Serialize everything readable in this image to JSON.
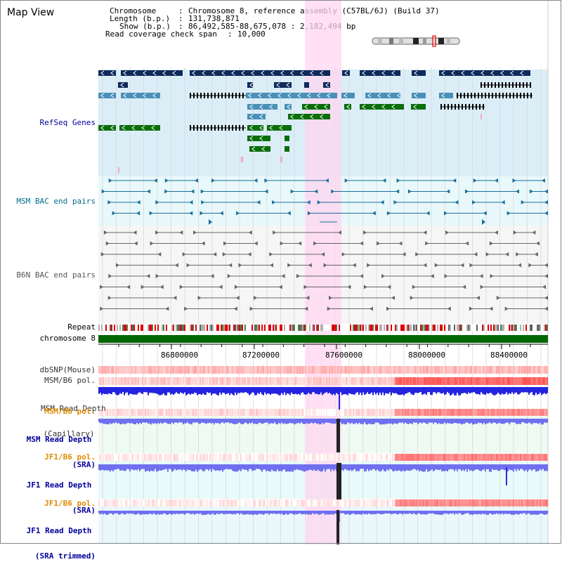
{
  "app": {
    "title": "Map View"
  },
  "header": {
    "chromosome_key": "Chromosome",
    "chromosome_val": "Chromosome 8, reference assembly (C57BL/6J) (Build 37)",
    "length_key": "Length (b.p.)",
    "length_val": "131,738,871",
    "show_key": "Show (b.p.)",
    "show_val": "86,492,585-88,675,078 : 2,182,494 bp",
    "coverage_key": "Read coverage check span",
    "coverage_val": "10,000",
    "sep": ":"
  },
  "tracks": {
    "refseq": {
      "label": "RefSeq Genes",
      "color": "#00009c"
    },
    "msm_bac": {
      "label": "MSM BAC end pairs",
      "color": "#006c8a"
    },
    "b6n_bac": {
      "label": "B6N BAC end pairs",
      "color": "#555555"
    },
    "repeat": {
      "label": "Repeat"
    },
    "chromosome": {
      "label": "chromosome 8"
    },
    "dbsnp": {
      "label": "dbSNP(Mouse)"
    },
    "msm_b6_pol_1": {
      "label": "MSM/B6 pol."
    },
    "msm_read_cap": {
      "line1": "MSM Read Depth",
      "line2": "(Capillary)"
    },
    "msm_b6_pol_2": {
      "label": "MSM/B6 pol.",
      "color": "#e08a00"
    },
    "msm_read_sra": {
      "line1": "MSM Read Depth",
      "line2": "(SRA)",
      "color": "#00009c"
    },
    "jf1_b6_pol_1": {
      "label": "JF1/B6 pol.",
      "color": "#e08a00"
    },
    "jf1_read_sra": {
      "line1": "JF1 Read Depth",
      "line2": "(SRA)",
      "color": "#00009c"
    },
    "jf1_b6_pol_2": {
      "label": "JF1/B6 pol.",
      "color": "#e08a00"
    },
    "jf1_read_trim": {
      "line1": "JF1 Read Depth",
      "line2": "(SRA trimmed)",
      "color": "#00009c"
    }
  },
  "axis": {
    "ticks": [
      "86800000",
      "87200000",
      "87600000",
      "88000000",
      "88400000"
    ]
  },
  "colors": {
    "refseq_dark": "#0d2a5a",
    "refseq_mid": "#4a90b8",
    "refseq_green": "#0a6e0a",
    "msm_bac": "#1a6f9a",
    "b6n_bac": "#666666",
    "highlight": "#ffd6f0",
    "chrom_bar": "#006600",
    "depth_blue": "#2424e0",
    "depth_light": "#6f6ff0"
  }
}
